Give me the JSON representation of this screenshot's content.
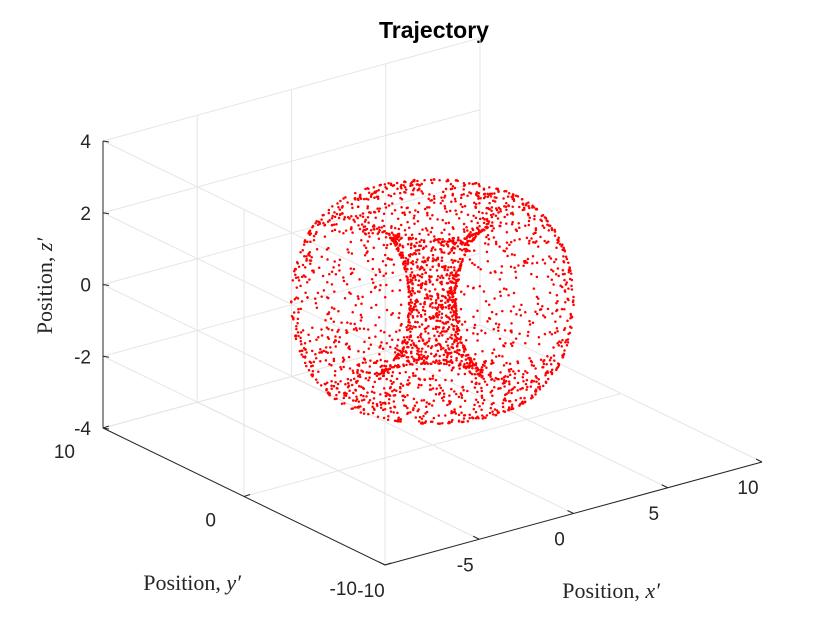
{
  "chart_data": {
    "type": "scatter",
    "title": "Trajectory",
    "xlabel": "Position, x′",
    "ylabel": "Position, y′",
    "zlabel": "Position, z′",
    "xlabel_prefix": "Position, ",
    "xlabel_var": "x′",
    "ylabel_prefix": "Position, ",
    "ylabel_var": "y′",
    "zlabel_prefix": "Position, ",
    "zlabel_var": "z′",
    "xlim": [
      -10,
      10
    ],
    "ylim": [
      -10,
      10
    ],
    "zlim": [
      -4,
      4
    ],
    "xticks": [
      -10,
      -5,
      0,
      5,
      10
    ],
    "xtick_labels": [
      "-10",
      "-5",
      "0",
      "5",
      "10"
    ],
    "yticks": [
      -10,
      0,
      10
    ],
    "ytick_labels": [
      "-10",
      "0",
      "10"
    ],
    "zticks": [
      -4,
      -2,
      0,
      2,
      4
    ],
    "ztick_labels": [
      "-4",
      "-2",
      "0",
      "2",
      "4"
    ],
    "grid": true,
    "marker_color": "#ff0000",
    "series": [
      {
        "shape": "torus",
        "center": [
          0,
          0,
          0
        ],
        "major_radius": 3.5,
        "minor_radius": 2.5,
        "z_range": [
          -2.5,
          2.5
        ],
        "x_range": [
          -6,
          6
        ],
        "y_range": [
          -6,
          6
        ]
      }
    ]
  }
}
